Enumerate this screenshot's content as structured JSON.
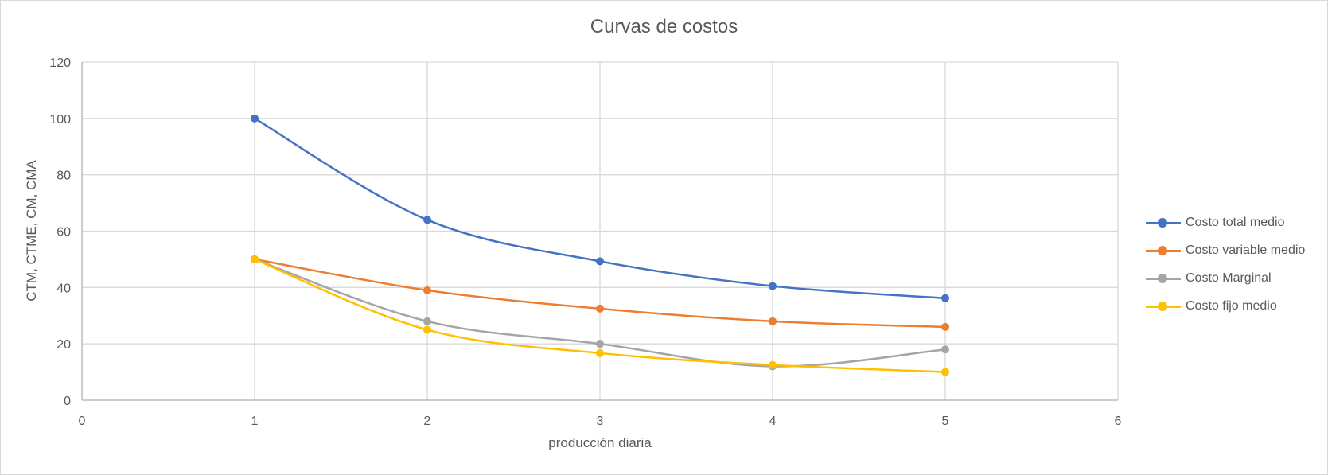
{
  "chart_data": {
    "type": "line",
    "title": "Curvas de costos",
    "xlabel": "producción diaria",
    "ylabel": "CTM, CTME, CM, CMA",
    "xlim": [
      0,
      6
    ],
    "ylim": [
      0,
      120
    ],
    "x_ticks": [
      "0",
      "1",
      "2",
      "3",
      "4",
      "5",
      "6"
    ],
    "y_ticks": [
      "0",
      "20",
      "40",
      "60",
      "80",
      "100",
      "120"
    ],
    "grid": true,
    "legend_position": "right",
    "smooth": true,
    "series": [
      {
        "name": "Costo total medio",
        "color": "#4472C4",
        "x": [
          1,
          2,
          3,
          4,
          5
        ],
        "y": [
          100,
          64,
          49.3,
          40.5,
          36.2
        ]
      },
      {
        "name": "Costo variable medio",
        "color": "#ED7D31",
        "x": [
          1,
          2,
          3,
          4,
          5
        ],
        "y": [
          50,
          39,
          32.5,
          28,
          26
        ]
      },
      {
        "name": "Costo Marginal",
        "color": "#A5A5A5",
        "x": [
          1,
          2,
          3,
          4,
          5
        ],
        "y": [
          50,
          28,
          20,
          12,
          18
        ]
      },
      {
        "name": "Costo fijo medio",
        "color": "#FFC000",
        "x": [
          1,
          2,
          3,
          4,
          5
        ],
        "y": [
          50,
          25,
          16.7,
          12.5,
          10
        ]
      }
    ]
  }
}
